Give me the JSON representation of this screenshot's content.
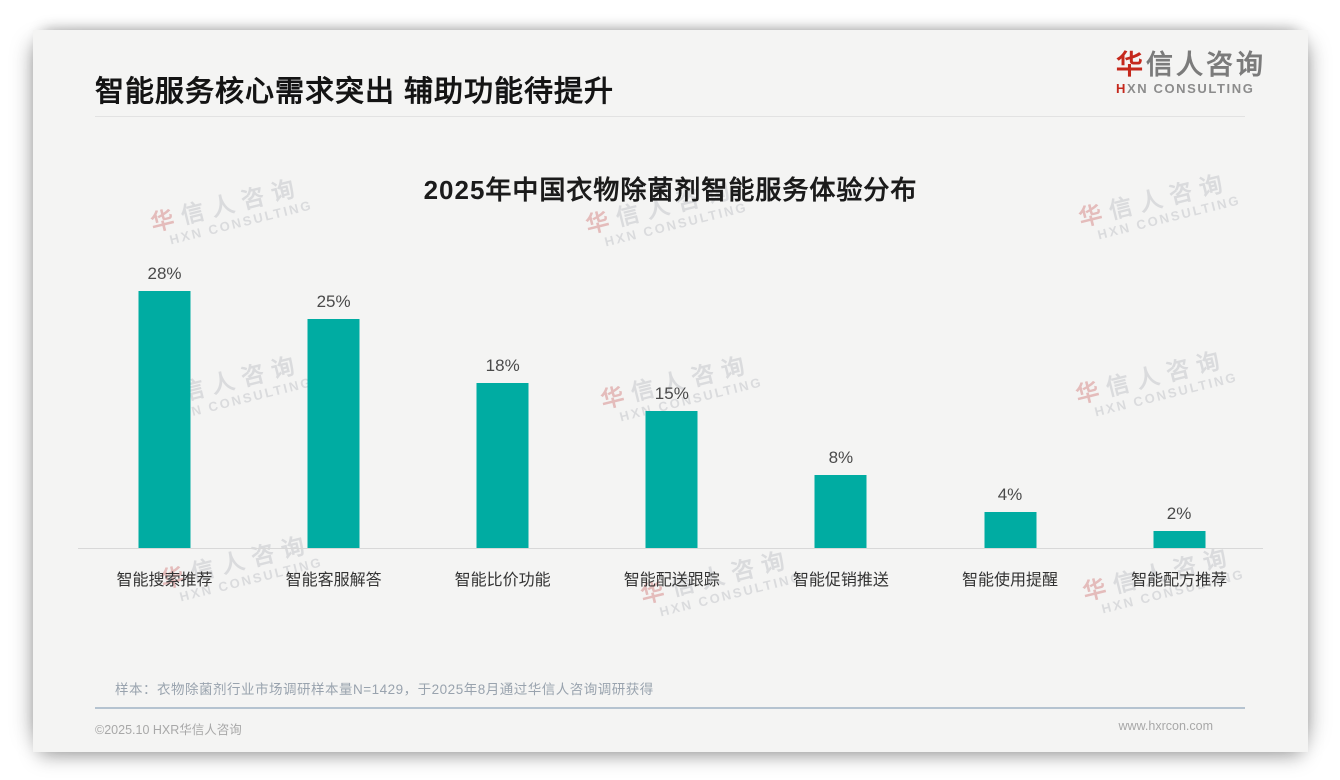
{
  "header": {
    "title": "智能服务核心需求突出 辅助功能待提升",
    "logo": {
      "cn_first_char": "华",
      "cn_rest": "信人咨询",
      "en": "HXN CONSULTING"
    }
  },
  "watermark": {
    "line1_first_char": "华",
    "line1_rest": "信人咨询",
    "line2": "HXN CONSULTING"
  },
  "chart_data": {
    "type": "bar",
    "title": "2025年中国衣物除菌剂智能服务体验分布",
    "categories": [
      "智能搜索推荐",
      "智能客服解答",
      "智能比价功能",
      "智能配送跟踪",
      "智能促销推送",
      "智能使用提醒",
      "智能配方推荐"
    ],
    "values": [
      28,
      25,
      18,
      15,
      8,
      4,
      2
    ],
    "value_labels": [
      "28%",
      "25%",
      "18%",
      "15%",
      "8%",
      "4%",
      "2%"
    ],
    "bar_color": "#00ACA2",
    "xlabel": "",
    "ylabel": "",
    "ylim": [
      0,
      30
    ],
    "grid": false,
    "legend": false
  },
  "footnote": {
    "sample_note": "样本：衣物除菌剂行业市场调研样本量N=1429，于2025年8月通过华信人咨询调研获得"
  },
  "footer": {
    "copyright": "©2025.10 HXR华信人咨询",
    "website": "www.hxrcon.com"
  }
}
